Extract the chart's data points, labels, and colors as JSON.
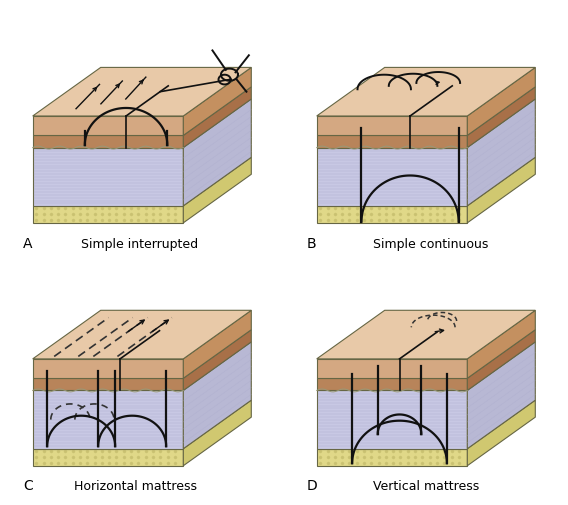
{
  "labels": {
    "A": "Simple interrupted",
    "B": "Simple continuous",
    "C": "Horizontal mattress",
    "D": "Vertical mattress"
  },
  "colors": {
    "skin_top": "#E8C9A8",
    "skin_front": "#D4A882",
    "skin_right": "#C49060",
    "dermis_top": "#C4956A",
    "dermis_front": "#B8845A",
    "dermis_right": "#A87048",
    "sub_top": "#D8D8EE",
    "sub_front": "#C8C8E4",
    "sub_right": "#B8B8D4",
    "fat_top": "#E8E0A0",
    "fat_front": "#E0D888",
    "fat_right": "#D0C870",
    "edge": "#666644",
    "suture": "#111111",
    "background": "#ffffff"
  },
  "font_size_label": 9,
  "font_size_letter": 10
}
